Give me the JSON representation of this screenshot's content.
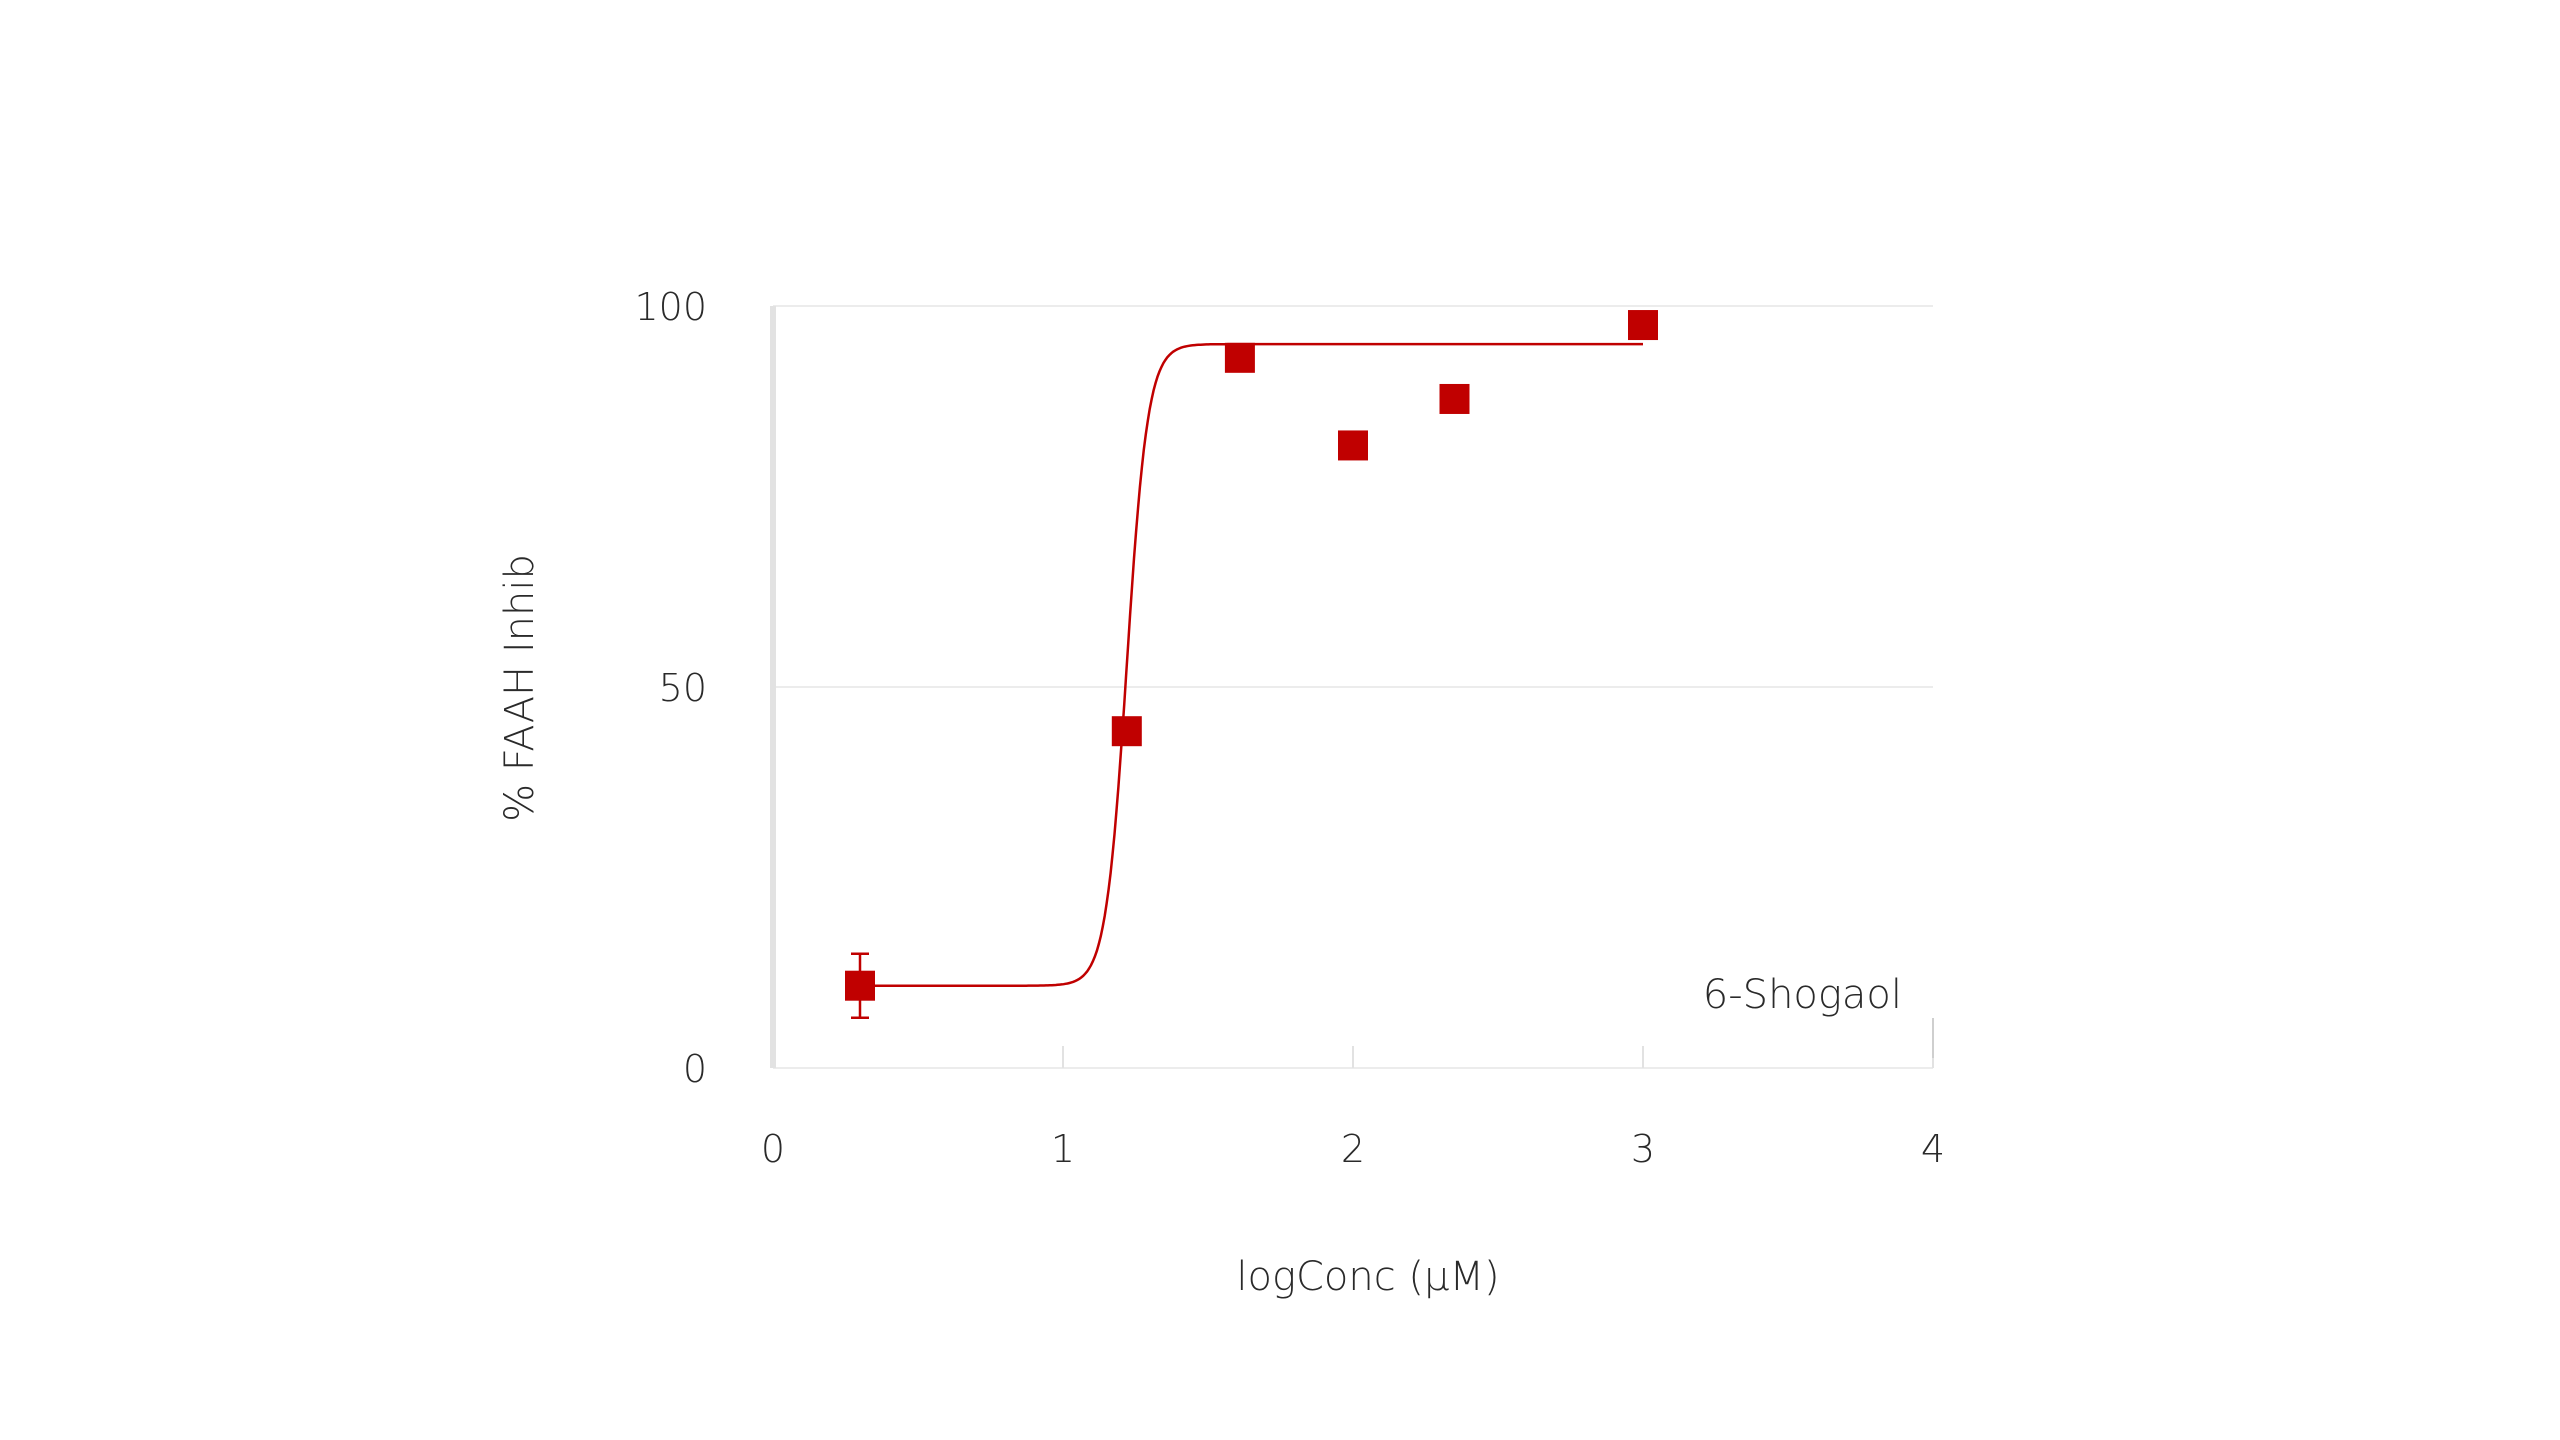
{
  "chart_data": {
    "type": "scatter",
    "title": "",
    "xlabel": "logConc (µM)",
    "ylabel": "% FAAH Inhib",
    "xlim": [
      0,
      4
    ],
    "ylim": [
      0,
      100
    ],
    "x_ticks": [
      "0",
      "1",
      "2",
      "3",
      "4"
    ],
    "y_ticks": [
      "0",
      "50",
      "100"
    ],
    "grid": "horizontal",
    "annotation": "6-Shogaol",
    "colors": {
      "series": "#c00000",
      "grid": "#e6e6e6",
      "axis": "#e2e2e2",
      "text": "#2a2a2a"
    },
    "series": [
      {
        "points": [
          {
            "x": 0.3,
            "y": 10.8,
            "err": 4.2
          },
          {
            "x": 1.22,
            "y": 44.2
          },
          {
            "x": 1.61,
            "y": 93.2
          },
          {
            "x": 2.0,
            "y": 81.7
          },
          {
            "x": 2.35,
            "y": 87.8
          },
          {
            "x": 3.0,
            "y": 97.5
          }
        ],
        "fit": {
          "bottom": 10.8,
          "top": 95.0,
          "log_ec50": 1.22,
          "x_range": [
            0.3,
            3.0
          ]
        }
      }
    ]
  }
}
